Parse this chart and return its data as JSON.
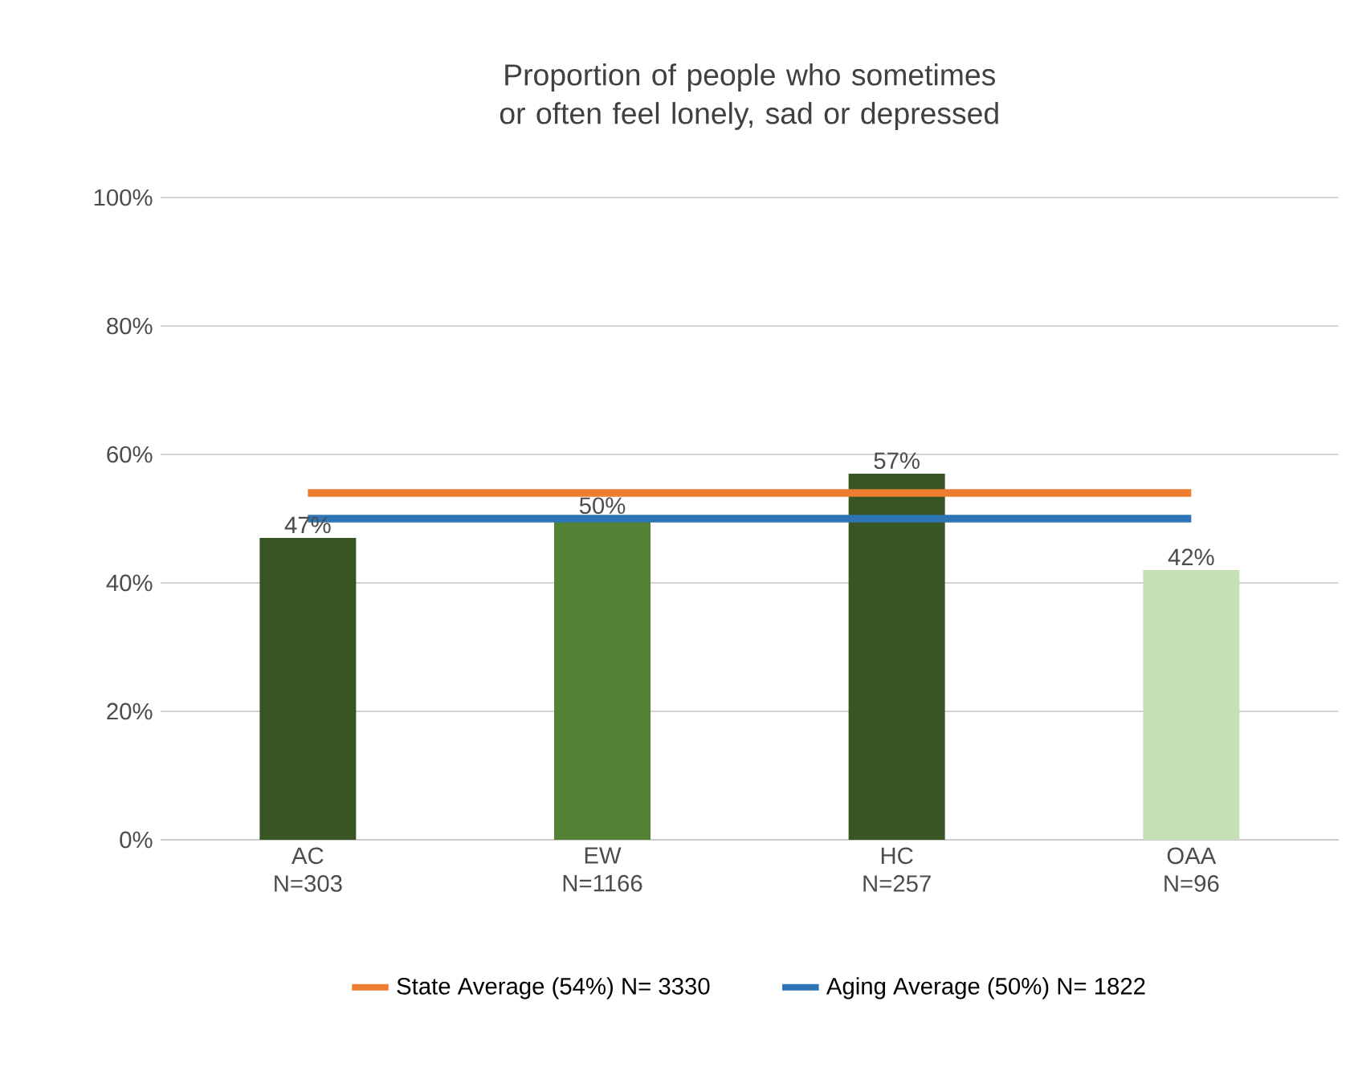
{
  "chart_data": {
    "type": "bar",
    "title": "Proportion of people who sometimes or often feel lonely, sad or depressed",
    "categories": [
      "AC N=303",
      "EW N=1166",
      "HC N=257",
      "OAA N=96"
    ],
    "values": [
      47,
      50,
      57,
      42
    ],
    "colors": [
      "#375623",
      "#538135",
      "#375623",
      "#c5e0b4"
    ],
    "value_labels": [
      "47%",
      "50%",
      "57%",
      "42%"
    ],
    "series": [
      {
        "type": "line",
        "name": "State Average (54%) N= 3330",
        "color": "#ed7d31",
        "values": [
          54,
          54,
          54,
          54
        ]
      },
      {
        "type": "line",
        "name": "Aging Average (50%) N= 1822",
        "color": "#2e75b6",
        "values": [
          50,
          50,
          50,
          50
        ]
      }
    ],
    "ylim": [
      0,
      100
    ],
    "yticks": [
      {
        "value": 0,
        "label": "0%"
      },
      {
        "value": 20,
        "label": "20%"
      },
      {
        "value": 40,
        "label": "40%"
      },
      {
        "value": 60,
        "label": "60%"
      },
      {
        "value": 80,
        "label": "80%"
      },
      {
        "value": 100,
        "label": "100%"
      }
    ],
    "grid": "y",
    "legend": "bottom",
    "line_style": "solid",
    "marker": "none"
  }
}
